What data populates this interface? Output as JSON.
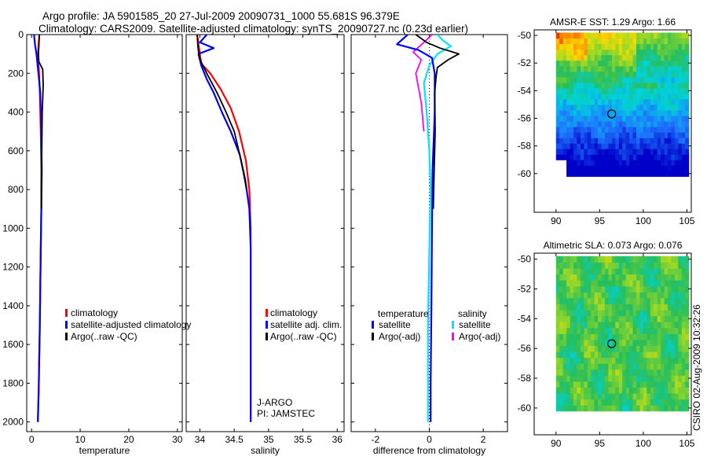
{
  "titles": {
    "line1": "Argo profile: JA 5901585_20 27-Jul-2009 20090731_1000 55.681S 96.379E",
    "line2": "Climatology: CARS2009. Satellite-adjusted climatology: synTS_20090727.nc (0.23d earlier)"
  },
  "side_label": "CSIRO 02-Aug-2009 10:32:26",
  "colors": {
    "red": "#ff0000",
    "blue": "#0000ff",
    "black": "#000000",
    "cyan": "#00e5ff",
    "magenta": "#ff00ff"
  },
  "chart_data": [
    {
      "type": "line",
      "id": "temperature",
      "xlabel": "temperature",
      "ylabel": "",
      "xlim": [
        -1,
        31
      ],
      "ylim": [
        2050,
        0
      ],
      "xticks": [
        0,
        10,
        20,
        30
      ],
      "xticklabels": [
        "0",
        "10",
        "20",
        "30"
      ],
      "yticks": [
        0,
        200,
        400,
        600,
        800,
        1000,
        1200,
        1400,
        1600,
        1800,
        2000
      ],
      "yticklabels": [
        "0",
        "200",
        "400",
        "600",
        "800",
        "1000",
        "1200",
        "1400",
        "1600",
        "1800",
        "2000"
      ],
      "legend": [
        {
          "label": "climatology",
          "color": "#ff0000"
        },
        {
          "label": "satellite-adjusted climatology",
          "color": "#0000ff"
        },
        {
          "label": "Argo(..raw -QC)",
          "color": "#000000"
        }
      ],
      "series": [
        {
          "name": "climatology",
          "color": "#ff0000",
          "width": 2.2,
          "x": [
            1.6,
            1.4,
            1.3,
            1.5,
            1.7,
            1.9,
            2.0,
            2.0,
            1.9,
            1.8,
            1.7,
            1.55,
            1.45,
            1.35,
            1.3
          ],
          "y": [
            0,
            60,
            120,
            180,
            300,
            500,
            700,
            900,
            1100,
            1300,
            1500,
            1700,
            1850,
            1950,
            2000
          ]
        },
        {
          "name": "satellite-adjusted climatology",
          "color": "#0000ff",
          "width": 2.2,
          "x": [
            0.5,
            0.7,
            1.0,
            1.4,
            1.8,
            2.0,
            2.1,
            2.0,
            1.9,
            1.8,
            1.7,
            1.55,
            1.45,
            1.35,
            1.3
          ],
          "y": [
            0,
            50,
            100,
            200,
            300,
            500,
            700,
            900,
            1100,
            1300,
            1500,
            1700,
            1850,
            1950,
            2000
          ]
        },
        {
          "name": "Argo(..raw -QC)",
          "color": "#000000",
          "width": 1.8,
          "x": [
            1.6,
            1.5,
            1.4,
            1.5,
            2.3,
            2.4,
            2.2,
            2.1,
            2.0,
            2.0
          ],
          "y": [
            0,
            60,
            100,
            140,
            180,
            260,
            400,
            600,
            800,
            900
          ]
        }
      ]
    },
    {
      "type": "line",
      "id": "salinity",
      "xlabel": "salinity",
      "ylabel": "",
      "xlim": [
        33.8,
        36.1
      ],
      "ylim": [
        2050,
        0
      ],
      "xticks": [
        34,
        34.5,
        35,
        35.5,
        36
      ],
      "xticklabels": [
        "34",
        "34.5",
        "35",
        "35.5",
        "36"
      ],
      "legend": [
        {
          "label": "climatology",
          "color": "#ff0000"
        },
        {
          "label": "satellite adj. clim.",
          "color": "#0000ff"
        },
        {
          "label": "Argo(..raw -QC)",
          "color": "#000000"
        }
      ],
      "annotation": [
        "J-ARGO",
        "PI: JAMSTEC"
      ],
      "series": [
        {
          "name": "climatology",
          "color": "#ff0000",
          "width": 2.2,
          "x": [
            33.96,
            33.98,
            34.02,
            34.15,
            34.3,
            34.45,
            34.57,
            34.67,
            34.72,
            34.74,
            34.74,
            34.74,
            34.74
          ],
          "y": [
            0,
            50,
            150,
            200,
            280,
            380,
            500,
            650,
            800,
            1000,
            1400,
            1800,
            2000
          ]
        },
        {
          "name": "satellite adj. clim.",
          "color": "#0000ff",
          "width": 2.2,
          "x": [
            34.1,
            34.0,
            34.2,
            33.98,
            34.02,
            34.1,
            34.2,
            34.32,
            34.45,
            34.58,
            34.66,
            34.72,
            34.74,
            34.74,
            34.74
          ],
          "y": [
            0,
            40,
            70,
            100,
            160,
            230,
            300,
            400,
            500,
            620,
            750,
            900,
            1100,
            1500,
            2000
          ]
        },
        {
          "name": "Argo(..raw -QC)",
          "color": "#000000",
          "width": 1.8,
          "x": [
            33.96,
            33.97,
            33.99,
            34.1,
            34.25,
            34.38,
            34.5,
            34.6,
            34.68
          ],
          "y": [
            0,
            60,
            120,
            200,
            300,
            400,
            500,
            650,
            800
          ]
        }
      ]
    },
    {
      "type": "line",
      "id": "difference",
      "xlabel": "difference from climatology",
      "ylabel": "",
      "xlim": [
        -2.9,
        2.9
      ],
      "ylim": [
        2050,
        0
      ],
      "xticks": [
        -2,
        0,
        2
      ],
      "xticklabels": [
        "-2",
        "0",
        "2"
      ],
      "legend_headers": [
        "temperature",
        "salinity"
      ],
      "legend": [
        {
          "label": "satellite",
          "color": "#0000ff"
        },
        {
          "label": "Argo(-adj)",
          "color": "#000000"
        },
        {
          "label": "satellite",
          "color": "#00e5ff"
        },
        {
          "label": "Argo(-adj)",
          "color": "#ff00ff"
        }
      ],
      "series": [
        {
          "name": "salinity Argo(-adj)",
          "color": "#ff00ff",
          "width": 1.8,
          "x": [
            0.1,
            -0.2,
            -0.6,
            -0.3,
            -0.5,
            -0.3,
            -0.2
          ],
          "y": [
            0,
            40,
            90,
            130,
            200,
            350,
            500
          ]
        },
        {
          "name": "salinity satellite",
          "color": "#00e5ff",
          "width": 2.2,
          "x": [
            0.3,
            0.5,
            0.8,
            0.3,
            0.0,
            -0.2,
            -0.1,
            0.0,
            0.05,
            0.0,
            -0.05,
            -0.05
          ],
          "y": [
            0,
            30,
            60,
            100,
            160,
            250,
            400,
            600,
            800,
            1100,
            1500,
            2000
          ]
        },
        {
          "name": "temperature satellite",
          "color": "#0000ff",
          "width": 2.2,
          "x": [
            -0.8,
            -1.2,
            -0.4,
            0.1,
            0.2,
            0.2,
            0.12,
            0.1,
            0.08,
            0.05,
            0.05
          ],
          "y": [
            0,
            50,
            80,
            120,
            200,
            400,
            700,
            1000,
            1400,
            1800,
            2000
          ]
        },
        {
          "name": "temperature Argo(-adj)",
          "color": "#000000",
          "width": 1.8,
          "x": [
            -0.5,
            -0.1,
            0.4,
            1.1,
            0.7,
            0.3,
            0.25,
            0.2,
            0.22,
            0.18,
            0.15
          ],
          "y": [
            0,
            40,
            70,
            100,
            130,
            170,
            220,
            300,
            500,
            700,
            900
          ]
        }
      ]
    },
    {
      "type": "heatmap",
      "id": "sst_map",
      "title": "AMSR-E SST: 1.29 Argo: 1.66",
      "xlim": [
        87.5,
        105.5
      ],
      "ylim": [
        -62.8,
        -49.6
      ],
      "xticks": [
        90,
        95,
        100,
        105
      ],
      "xticklabels": [
        "90",
        "95",
        "100",
        "105"
      ],
      "yticks": [
        -50,
        -52,
        -54,
        -56,
        -58,
        -60
      ],
      "yticklabels": [
        "-50",
        "-52",
        "-54",
        "-56",
        "-58",
        "-60"
      ],
      "marker": {
        "lon": 96.379,
        "lat": -55.681
      }
    },
    {
      "type": "heatmap",
      "id": "sla_map",
      "title": "Altimetric SLA: 0.073 Argo: 0.076",
      "xlim": [
        87.5,
        105.5
      ],
      "ylim": [
        -61.8,
        -49.6
      ],
      "xticks": [
        90,
        95,
        100,
        105
      ],
      "xticklabels": [
        "90",
        "95",
        "100",
        "105"
      ],
      "yticks": [
        -50,
        -52,
        -54,
        -56,
        -58,
        -60
      ],
      "yticklabels": [
        "-50",
        "-52",
        "-54",
        "-56",
        "-58",
        "-60"
      ],
      "marker": {
        "lon": 96.379,
        "lat": -55.681
      }
    }
  ]
}
